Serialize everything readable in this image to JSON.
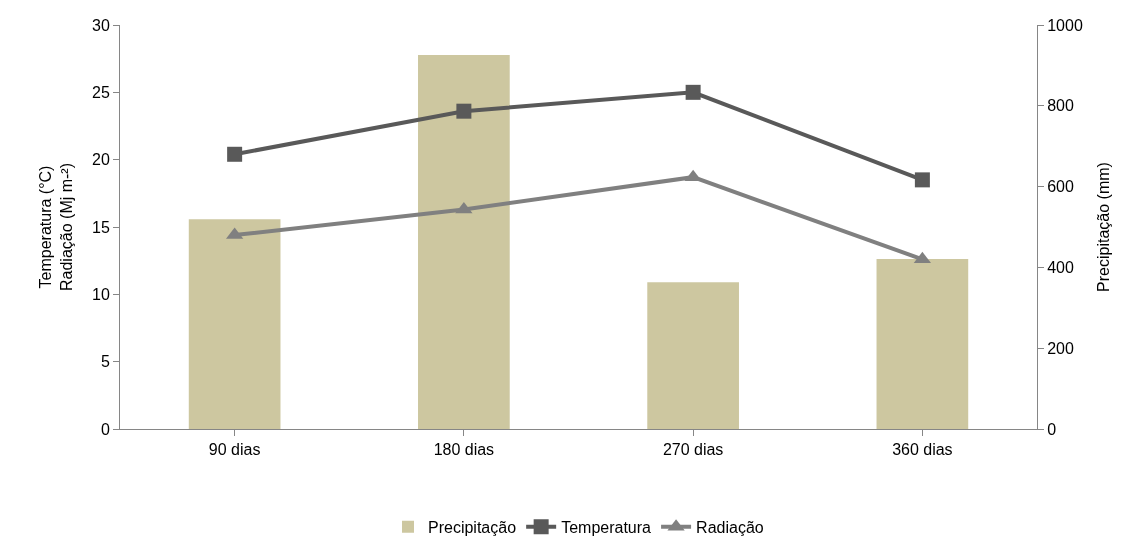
{
  "chart_data": {
    "type": "bar",
    "categories": [
      "90 dias",
      "180 dias",
      "270 dias",
      "360 dias"
    ],
    "ylabel": "Temperatura (°C)\nRadiação (Mj m-²)",
    "y2label": "Precipitação (mm)",
    "ylim": [
      0,
      30
    ],
    "yticks": [
      0,
      5,
      10,
      15,
      20,
      25,
      30
    ],
    "y2lim": [
      0,
      1000
    ],
    "y2ticks": [
      0,
      200,
      400,
      600,
      800,
      1000
    ],
    "legend": "bottom",
    "series": [
      {
        "name": "Precipitação",
        "axis": "y2",
        "color": "#cdc7a0",
        "values": [
          519,
          926,
          363,
          421
        ]
      },
      {
        "name": "Temperatura",
        "type": "line",
        "axis": "y",
        "color": "#595959",
        "marker": "square",
        "values": [
          20.4,
          23.6,
          25.0,
          18.5
        ]
      },
      {
        "name": "Radiação",
        "type": "line",
        "axis": "y",
        "color": "#808080",
        "marker": "triangle",
        "values": [
          14.4,
          16.3,
          18.7,
          12.6
        ]
      }
    ]
  }
}
